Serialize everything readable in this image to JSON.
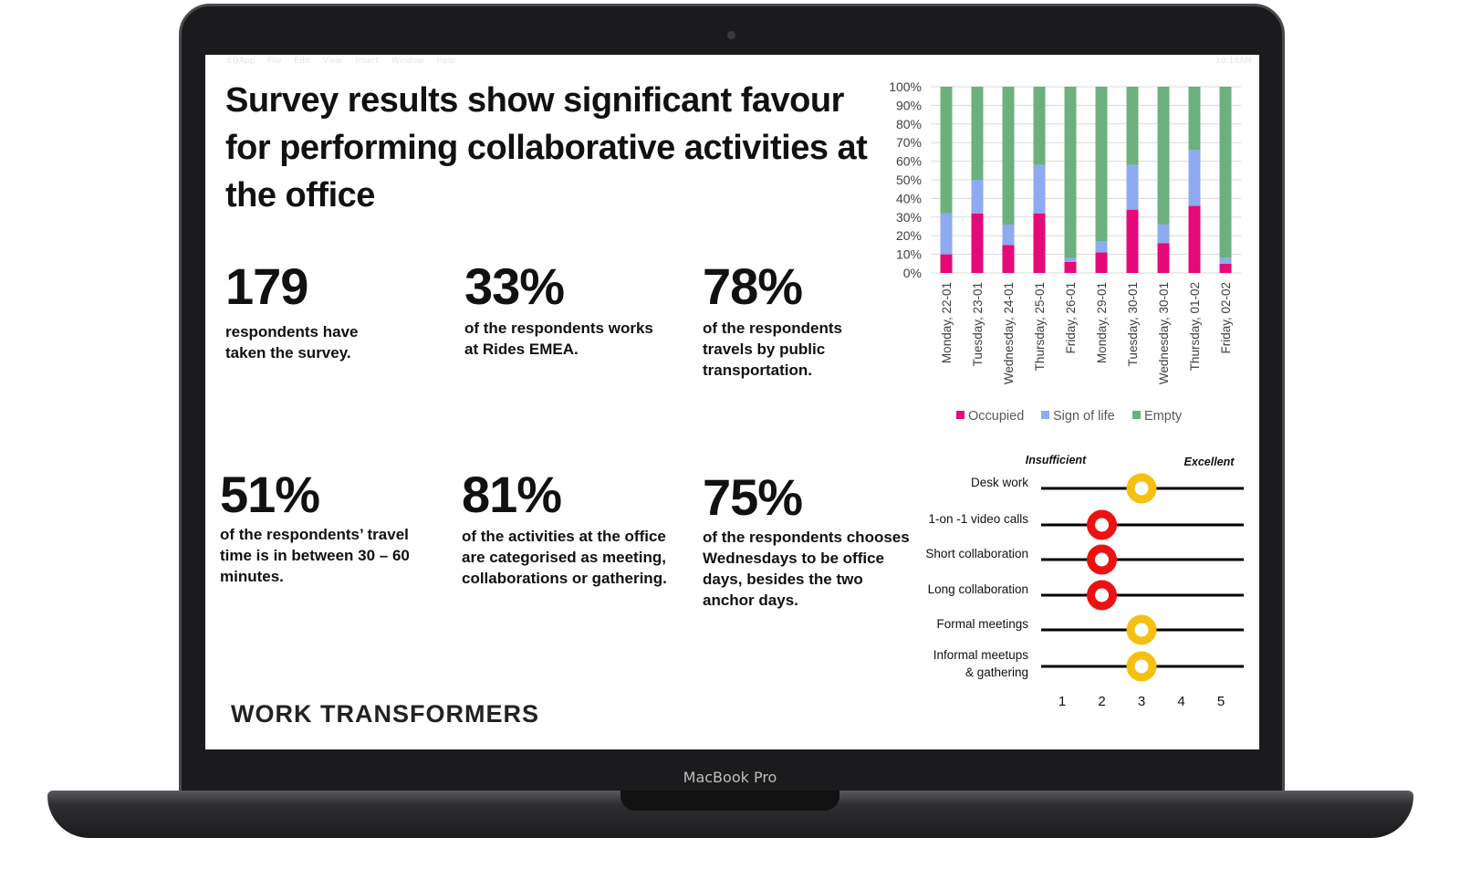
{
  "device": {
    "label": "MacBook Pro"
  },
  "menubar": {
    "left": [
      "",
      "EQApp",
      "File",
      "Edit",
      "View",
      "Insert",
      "Window",
      "Help"
    ],
    "right": "10:18AM"
  },
  "slide": {
    "headline": "Survey results show significant favour for performing collaborative activities at the office",
    "stats": [
      {
        "value": "179",
        "text": "respondents have taken the survey."
      },
      {
        "value": "33%",
        "text": "of the respondents works at Rides EMEA."
      },
      {
        "value": "78%",
        "text": "of the respondents travels by public transportation."
      },
      {
        "value": "51%",
        "text": "of the respondents’ travel time is in between 30 – 60 minutes."
      },
      {
        "value": "81%",
        "text": "of the activities at the office are categorised as meeting, collaborations or  gathering."
      },
      {
        "value": "75%",
        "text": "of the respondents chooses Wednesdays to be office days, besides the two anchor days."
      }
    ],
    "footer_brand": "WORK TRANSFORMERS"
  },
  "colors": {
    "occupied": "#e6097a",
    "sign_of_life": "#8eaaf0",
    "empty": "#6cb07e",
    "red_dot": "#ee1111",
    "yellow_dot": "#f5c010"
  },
  "chart_data": [
    {
      "type": "bar",
      "stacked": true,
      "categories": [
        "Monday, 22-01",
        "Tuesday, 23-01",
        "Wednesday, 24-01",
        "Thursday, 25-01",
        "Friday, 26-01",
        "Monday, 29-01",
        "Tuesday, 30-01",
        "Wednesday, 30-01",
        "Thursday, 01-02",
        "Friday, 02-02"
      ],
      "series": [
        {
          "name": "Occupied",
          "values": [
            10,
            32,
            15,
            32,
            6,
            11,
            34,
            16,
            36,
            5
          ]
        },
        {
          "name": "Sign of life",
          "values": [
            22,
            18,
            11,
            26,
            2,
            6,
            24,
            10,
            30,
            3
          ]
        },
        {
          "name": "Empty",
          "values": [
            68,
            50,
            74,
            42,
            92,
            83,
            42,
            74,
            34,
            92
          ]
        }
      ],
      "yticks": [
        "100%",
        "90%",
        "80%",
        "70%",
        "60%",
        "50%",
        "40%",
        "30%",
        "20%",
        "10%",
        "0%"
      ],
      "ylim": [
        0,
        100
      ],
      "legend": "bottom",
      "grid": true
    },
    {
      "type": "scatter",
      "categories": [
        "Desk work",
        "1-on -1 video calls",
        "Short collaboration",
        "Long collaboration",
        "Formal meetings",
        "Informal meetups & gathering"
      ],
      "values": [
        3,
        2,
        2,
        2,
        3,
        3
      ],
      "xticks": [
        "1",
        "2",
        "3",
        "4",
        "5"
      ],
      "xlim": [
        1,
        5
      ],
      "scale_low_label": "Insufficient",
      "scale_high_label": "Excellent"
    }
  ]
}
